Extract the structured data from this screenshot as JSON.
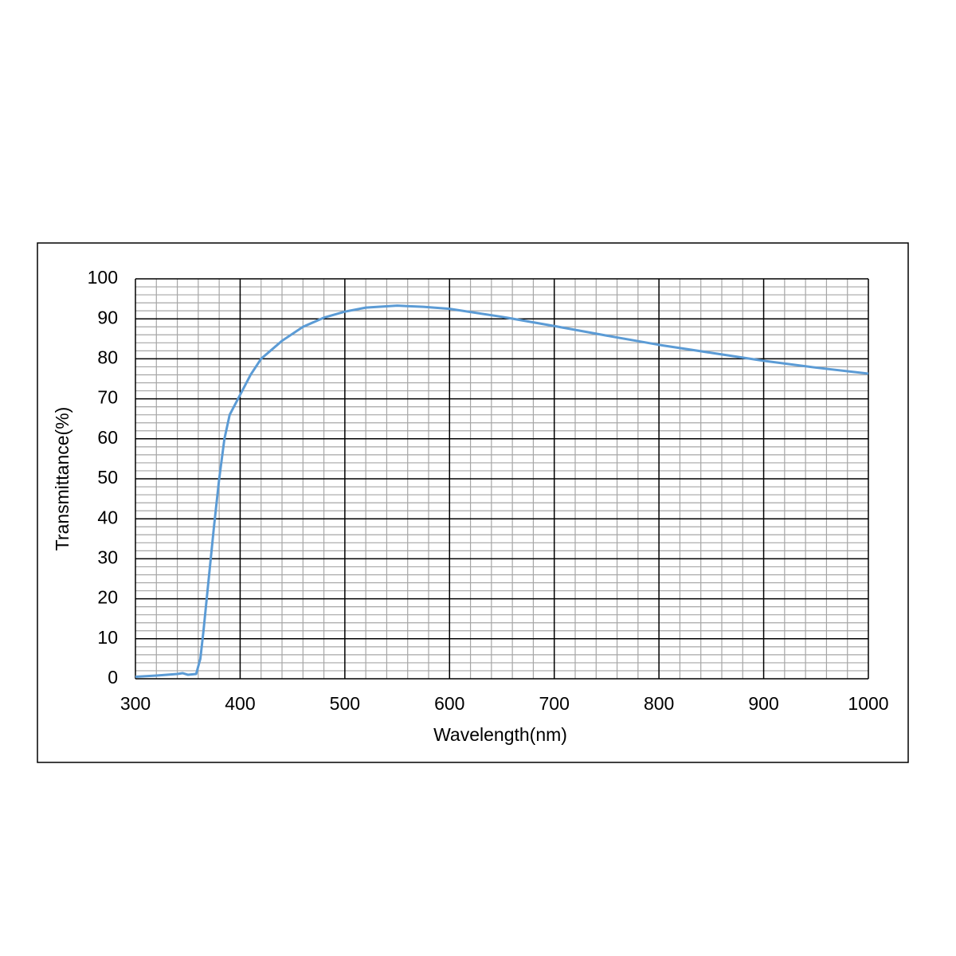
{
  "chart_data": {
    "type": "line",
    "xlabel": "Wavelength(nm)",
    "ylabel": "Transmittance(%)",
    "x": [
      300,
      320,
      340,
      345,
      350,
      358,
      362,
      365,
      370,
      375,
      380,
      385,
      390,
      400,
      410,
      420,
      440,
      460,
      480,
      500,
      520,
      550,
      575,
      600,
      650,
      700,
      750,
      800,
      850,
      900,
      950,
      1000
    ],
    "series": [
      {
        "color": "#5b9bd5",
        "values": [
          0.5,
          0.8,
          1.2,
          1.4,
          1.0,
          1.2,
          5,
          12,
          25,
          38,
          50,
          60,
          66,
          71,
          76,
          80,
          84.5,
          88,
          90.3,
          91.8,
          92.8,
          93.3,
          93.0,
          92.5,
          90.5,
          88.2,
          85.8,
          83.5,
          81.5,
          79.5,
          77.8,
          76.3
        ]
      }
    ],
    "xlim": [
      300,
      1000
    ],
    "xticks": [
      300,
      400,
      500,
      600,
      700,
      800,
      900,
      1000
    ],
    "ylim": [
      0,
      100
    ],
    "yticks": [
      0,
      10,
      20,
      30,
      40,
      50,
      60,
      70,
      80,
      90,
      100
    ],
    "grid": true
  }
}
